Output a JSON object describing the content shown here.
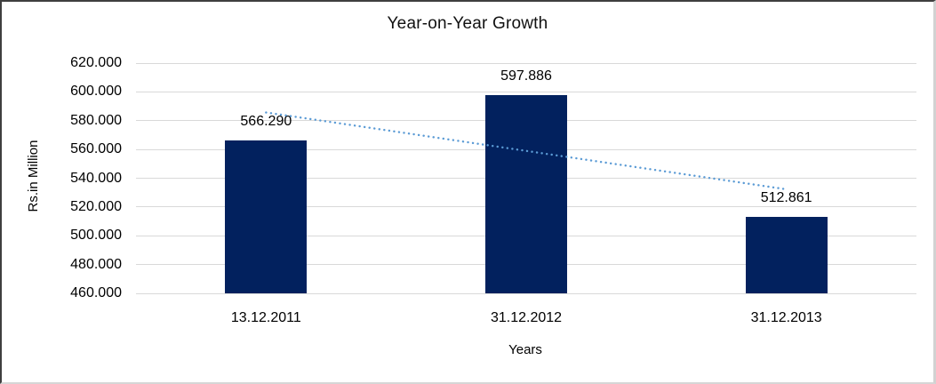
{
  "chart_data": {
    "type": "bar",
    "title": "Year-on-Year Growth",
    "xlabel": "Years",
    "ylabel": "Rs.in Million",
    "categories": [
      "13.12.2011",
      "31.12.2012",
      "31.12.2013"
    ],
    "values": [
      566290,
      597886,
      512861
    ],
    "value_labels": [
      "566.290",
      "597.886",
      "512.861"
    ],
    "ylim": [
      460000,
      620000
    ],
    "y_tick_step": 20000,
    "y_tick_labels": [
      "460.000",
      "480.000",
      "500.000",
      "520.000",
      "540.000",
      "560.000",
      "580.000",
      "600.000",
      "620.000"
    ],
    "grid": "horizontal-only",
    "legend": "none",
    "bar_color": "#02215E",
    "gridline_color": "#d9d9d9",
    "trendline": {
      "type": "linear",
      "style": "dotted",
      "color": "#5B9BD5",
      "start_value": 585700,
      "end_value": 532300
    }
  }
}
